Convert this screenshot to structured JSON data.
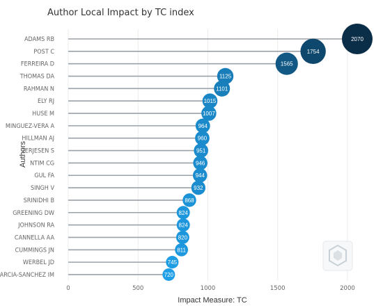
{
  "chart_data": {
    "type": "scatter",
    "title": "Author Local Impact by TC index",
    "xlabel": "Impact Measure: TC",
    "ylabel": "Authors",
    "xlim": [
      0,
      2070
    ],
    "xticks": [
      "0",
      "500",
      "1000",
      "1500",
      "2000"
    ],
    "xtick_values": [
      0,
      500,
      1000,
      1500,
      2000
    ],
    "grid": true,
    "colors": {
      "min": "#1e9fe8",
      "max": "#0a2d48",
      "stem": "#9aa1a8",
      "grid": "#ececec"
    },
    "categories": [
      "ADAMS RB",
      "POST C",
      "FERREIRA D",
      "THOMAS DA",
      "RAHMAN N",
      "ELY RJ",
      "HUSE M",
      "MINGUEZ-VERA A",
      "HILLMAN AJ",
      "TERJESEN S",
      "NTIM CG",
      "GUL FA",
      "SINGH V",
      "SRINIDHI B",
      "GREENING DW",
      "JOHNSON RA",
      "CANNELLA AA",
      "CUMMINGS JN",
      "WERBEL JD",
      "GARCIA-SANCHEZ IM"
    ],
    "values": [
      2070,
      1754,
      1565,
      1125,
      1101,
      1015,
      1007,
      964,
      960,
      951,
      946,
      944,
      932,
      868,
      824,
      824,
      820,
      811,
      745,
      720
    ],
    "point_labels": [
      "2070",
      "1754",
      "1565",
      "1125",
      "1101",
      "1015",
      "1007",
      "964",
      "960",
      "951",
      "946",
      "944",
      "932",
      "868",
      "824",
      "824",
      "820",
      "811",
      "745",
      "720"
    ]
  }
}
